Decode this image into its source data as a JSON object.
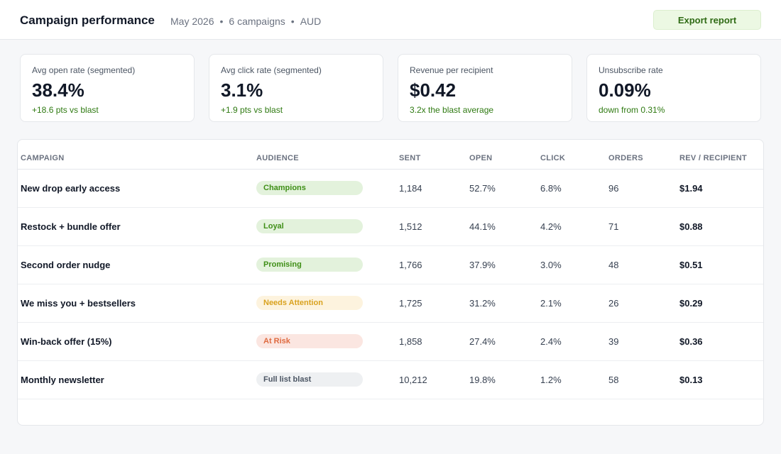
{
  "header": {
    "title": "Campaign performance",
    "meta": [
      "May 2026",
      "6 campaigns",
      "AUD"
    ],
    "separator": "•",
    "export_label": "Export report"
  },
  "kpis": [
    {
      "label": "Avg open rate (segmented)",
      "value": "38.4%",
      "sub": "+18.6 pts vs blast"
    },
    {
      "label": "Avg click rate (segmented)",
      "value": "3.1%",
      "sub": "+1.9 pts vs blast"
    },
    {
      "label": "Revenue per recipient",
      "value": "$0.42",
      "sub": "3.2x the blast average"
    },
    {
      "label": "Unsubscribe rate",
      "value": "0.09%",
      "sub": "down from 0.31%"
    }
  ],
  "table": {
    "columns": [
      "CAMPAIGN",
      "AUDIENCE",
      "SENT",
      "OPEN",
      "CLICK",
      "ORDERS",
      "REV / RECIPIENT"
    ],
    "rows": [
      {
        "campaign": "New drop early access",
        "audience": "Champions",
        "sent": "1,184",
        "open": "52.7%",
        "click": "6.8%",
        "orders": "96",
        "rev": "$1.94"
      },
      {
        "campaign": "Restock + bundle offer",
        "audience": "Loyal",
        "sent": "1,512",
        "open": "44.1%",
        "click": "4.2%",
        "orders": "71",
        "rev": "$0.88"
      },
      {
        "campaign": "Second order nudge",
        "audience": "Promising",
        "sent": "1,766",
        "open": "37.9%",
        "click": "3.0%",
        "orders": "48",
        "rev": "$0.51"
      },
      {
        "campaign": "We miss you + bestsellers",
        "audience": "Needs Attention",
        "sent": "1,725",
        "open": "31.2%",
        "click": "2.1%",
        "orders": "26",
        "rev": "$0.29"
      },
      {
        "campaign": "Win-back offer (15%)",
        "audience": "At Risk",
        "sent": "1,858",
        "open": "27.4%",
        "click": "2.4%",
        "orders": "39",
        "rev": "$0.36"
      },
      {
        "campaign": "Monthly newsletter",
        "audience": "Full list blast",
        "sent": "10,212",
        "open": "19.8%",
        "click": "1.2%",
        "orders": "58",
        "rev": "$0.13"
      }
    ]
  },
  "audience_colors": {
    "Champions": {
      "bg": "#e3f2dc",
      "fg": "#3f8f17"
    },
    "Loyal": {
      "bg": "#e3f2dc",
      "fg": "#3f8f17"
    },
    "Promising": {
      "bg": "#e3f2dc",
      "fg": "#3f8f17"
    },
    "Needs Attention": {
      "bg": "#fdf3de",
      "fg": "#d9a21f"
    },
    "At Risk": {
      "bg": "#fbe6e1",
      "fg": "#df6a3f"
    },
    "Full list blast": {
      "bg": "#eef0f2",
      "fg": "#4b5563"
    }
  }
}
